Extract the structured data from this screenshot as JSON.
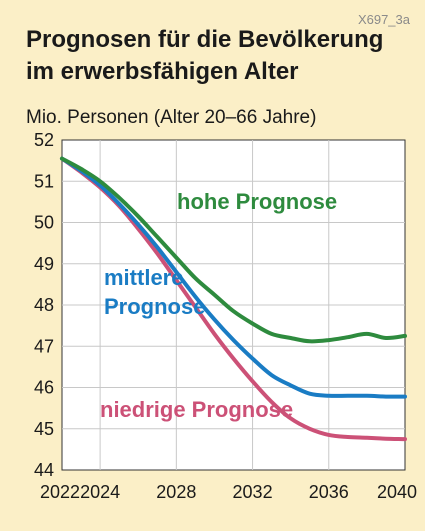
{
  "chart_data": {
    "type": "line",
    "code": "X697_3a",
    "title_lines": [
      "Prognosen für die Bevölkerung",
      "im erwerbsfähigen Alter"
    ],
    "ylabel": "Mio. Personen (Alter 20–66 Jahre)",
    "xlabel": "",
    "ylim": [
      44,
      52
    ],
    "xlim": [
      2022,
      2040
    ],
    "x_ticks": [
      "2022",
      "2024",
      "2028",
      "2032",
      "2036",
      "2040"
    ],
    "y_ticks": [
      "44",
      "45",
      "46",
      "47",
      "48",
      "49",
      "50",
      "51",
      "52"
    ],
    "grid": true,
    "series": [
      {
        "key": "hoch",
        "color": "#2e8b3e",
        "label_lines": [
          "hohe Prognose"
        ],
        "x": [
          2022,
          2023,
          2024,
          2025,
          2026,
          2027,
          2028,
          2029,
          2030,
          2031,
          2032,
          2033,
          2034,
          2035,
          2036,
          2037,
          2038,
          2039,
          2040
        ],
        "values": [
          51.55,
          51.3,
          51.0,
          50.6,
          50.15,
          49.65,
          49.15,
          48.65,
          48.25,
          47.85,
          47.55,
          47.3,
          47.2,
          47.12,
          47.15,
          47.22,
          47.3,
          47.2,
          47.25
        ]
      },
      {
        "key": "mittel",
        "color": "#1a7cc4",
        "label_lines": [
          "mittlere",
          "Prognose"
        ],
        "x": [
          2022,
          2023,
          2024,
          2025,
          2026,
          2027,
          2028,
          2029,
          2030,
          2031,
          2032,
          2033,
          2034,
          2035,
          2036,
          2037,
          2038,
          2039,
          2040
        ],
        "values": [
          51.55,
          51.25,
          50.9,
          50.45,
          49.95,
          49.4,
          48.8,
          48.2,
          47.65,
          47.15,
          46.7,
          46.3,
          46.05,
          45.85,
          45.8,
          45.8,
          45.8,
          45.78,
          45.78
        ]
      },
      {
        "key": "niedrig",
        "color": "#cc5177",
        "label_lines": [
          "niedrige Prognose"
        ],
        "x": [
          2022,
          2023,
          2024,
          2025,
          2026,
          2027,
          2028,
          2029,
          2030,
          2031,
          2032,
          2033,
          2034,
          2035,
          2036,
          2037,
          2038,
          2039,
          2040
        ],
        "values": [
          51.55,
          51.22,
          50.85,
          50.4,
          49.85,
          49.25,
          48.6,
          47.95,
          47.3,
          46.7,
          46.15,
          45.65,
          45.25,
          45.0,
          44.85,
          44.8,
          44.78,
          44.76,
          44.75
        ]
      }
    ]
  }
}
